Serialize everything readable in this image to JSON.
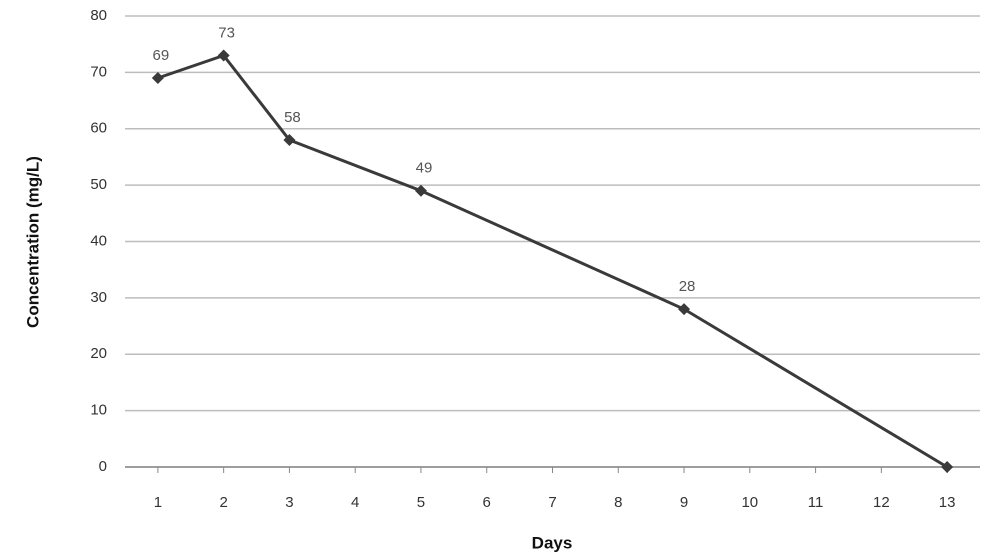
{
  "chart_data": {
    "type": "line",
    "x_label": "Days",
    "y_label": "Concentration (mg/L)",
    "x": [
      1,
      2,
      3,
      5,
      9,
      13
    ],
    "series": [
      {
        "name": "Concentration",
        "color": "#3a3a3a",
        "values": [
          69,
          73,
          58,
          49,
          28,
          0
        ],
        "value_labels": [
          "69",
          "73",
          "58",
          "49",
          "28",
          null
        ]
      }
    ],
    "xlim": [
      0.5,
      13.5
    ],
    "xticks": [
      1,
      2,
      3,
      4,
      5,
      6,
      7,
      8,
      9,
      10,
      11,
      12,
      13
    ],
    "ylim": [
      0,
      80
    ],
    "yticks": [
      0,
      10,
      20,
      30,
      40,
      50,
      60,
      70,
      80
    ],
    "grid": true,
    "marker": "diamond"
  }
}
